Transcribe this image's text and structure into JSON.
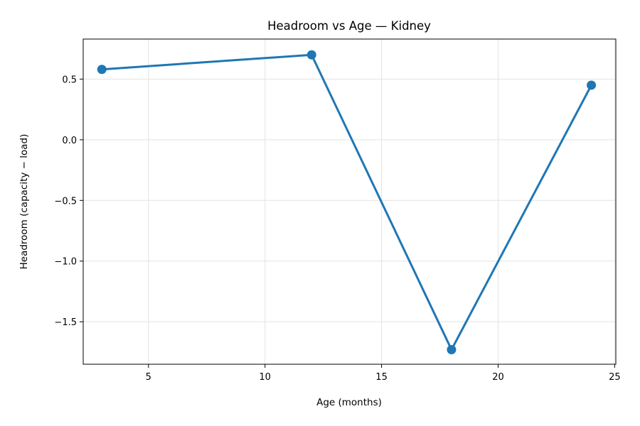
{
  "chart_data": {
    "type": "line",
    "title": "Headroom vs Age — Kidney",
    "xlabel": "Age (months)",
    "ylabel": "Headroom (capacity − load)",
    "xlim": [
      2.2,
      25.05
    ],
    "ylim": [
      -1.85,
      0.83
    ],
    "xticks": [
      5,
      10,
      15,
      20,
      25
    ],
    "xtick_labels": [
      "5",
      "10",
      "15",
      "20",
      "25"
    ],
    "yticks": [
      0.5,
      0.0,
      -0.5,
      -1.0,
      -1.5
    ],
    "ytick_labels": [
      "0.5",
      "0.0",
      "−0.5",
      "−1.0",
      "−1.5"
    ],
    "grid": true,
    "series": [
      {
        "color": "#1f77b4",
        "x": [
          3,
          12,
          18,
          24
        ],
        "y": [
          0.58,
          0.7,
          -1.73,
          0.45
        ]
      }
    ]
  }
}
